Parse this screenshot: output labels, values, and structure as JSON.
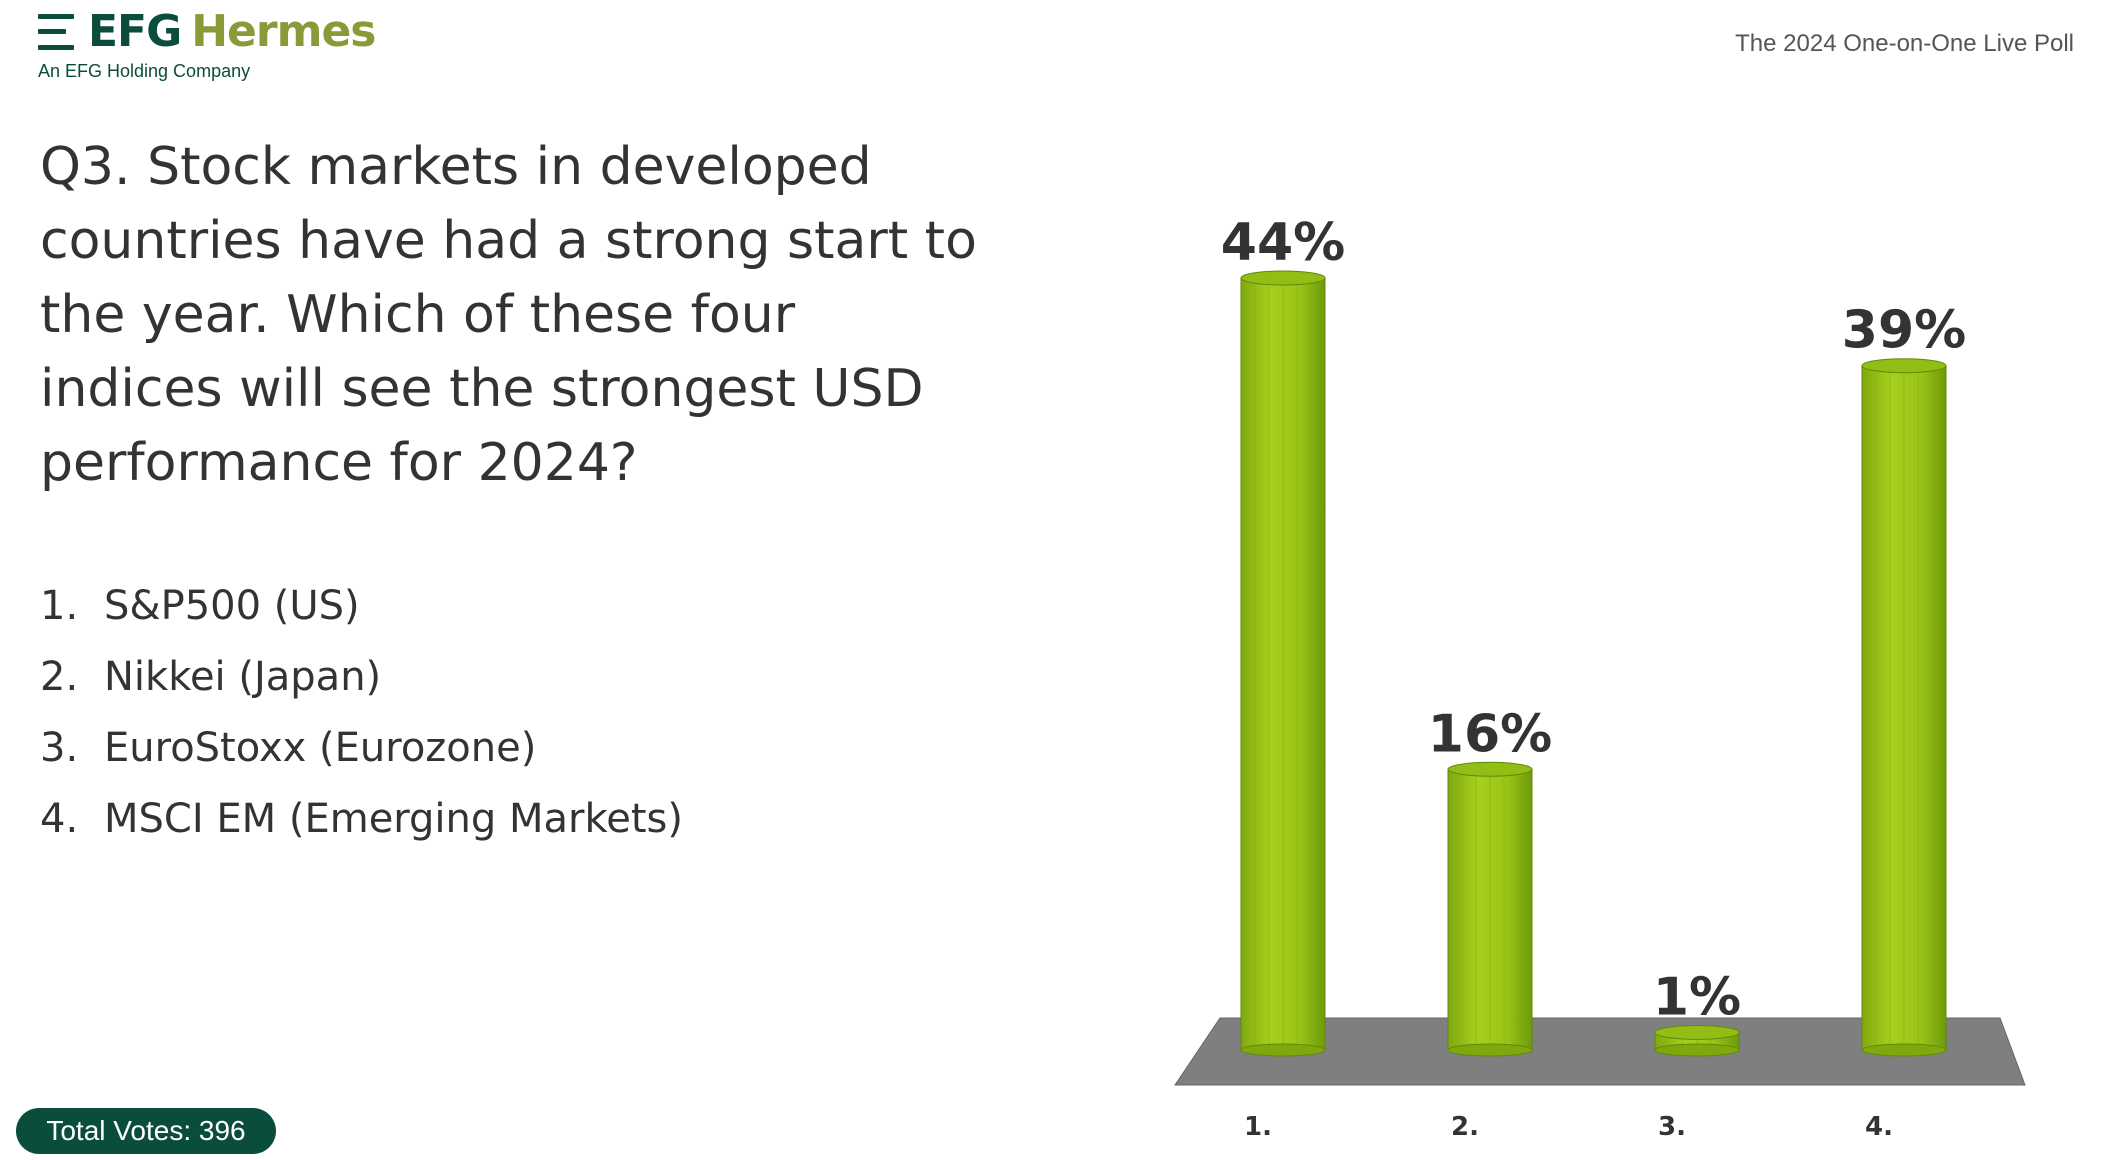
{
  "header": {
    "brand_primary": "EFG",
    "brand_secondary": "Hermes",
    "brand_subtitle": "An EFG Holding Company",
    "poll_title": "The 2024 One-on-One Live Poll"
  },
  "question": {
    "text": "Q3. Stock markets in developed countries have had a strong start to the year. Which of these four indices will see the strongest USD performance for 2024?",
    "options": [
      {
        "num": "1.",
        "label": "S&P500 (US)"
      },
      {
        "num": "2.",
        "label": "Nikkei (Japan)"
      },
      {
        "num": "3.",
        "label": "EuroStoxx (Eurozone)"
      },
      {
        "num": "4.",
        "label": "MSCI EM (Emerging Markets)"
      }
    ]
  },
  "footer": {
    "total_votes": "Total Votes: 396"
  },
  "colors": {
    "brand_dark": "#0b4d3c",
    "brand_olive": "#8a9a38",
    "bar": "#9ccc1a",
    "floor": "#7f7f7f"
  },
  "chart_data": {
    "type": "bar",
    "categories": [
      "1.",
      "2.",
      "3.",
      "4."
    ],
    "values": [
      44,
      16,
      1,
      39
    ],
    "data_labels": [
      "44%",
      "16%",
      "1%",
      "39%"
    ],
    "unit": "%",
    "title": "",
    "xlabel": "",
    "ylabel": "",
    "ylim": [
      0,
      44
    ],
    "grid": false,
    "legend": "none"
  }
}
